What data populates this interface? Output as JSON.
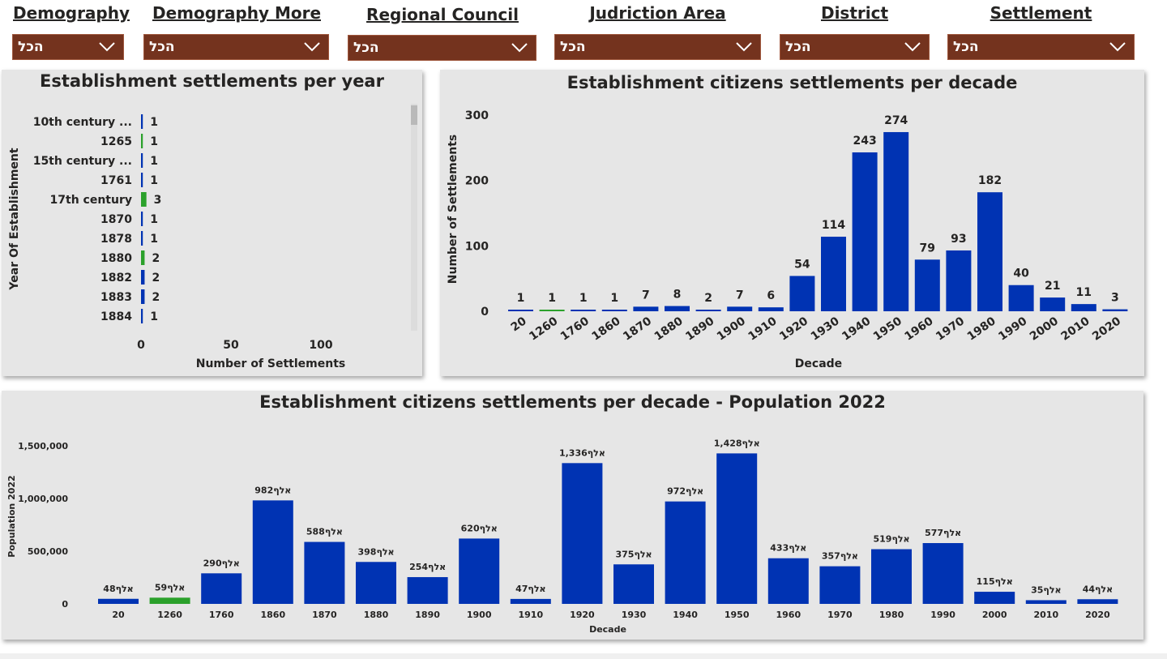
{
  "filters": [
    {
      "label": "Demography",
      "value": "הכל"
    },
    {
      "label": "Demography More",
      "value": "הכל"
    },
    {
      "label": "Regional Council",
      "value": "הכל"
    },
    {
      "label": "Judriction Area",
      "value": "הכל"
    },
    {
      "label": "District",
      "value": "הכל"
    },
    {
      "label": "Settlement",
      "value": "הכל"
    }
  ],
  "chart_data": [
    {
      "type": "bar",
      "orientation": "horizontal",
      "title": "Establishment settlements per year",
      "xlabel": "Number of Settlements",
      "ylabel": "Year Of Establishment",
      "xlim": [
        0,
        150
      ],
      "xticks": [
        "0",
        "50",
        "100"
      ],
      "categories": [
        "10th century ...",
        "1265",
        "15th century ...",
        "1761",
        "17th century",
        "1870",
        "1878",
        "1880",
        "1882",
        "1883",
        "1884"
      ],
      "values": [
        1,
        1,
        1,
        1,
        3,
        1,
        1,
        2,
        2,
        2,
        1
      ],
      "highlighted": [
        false,
        true,
        false,
        false,
        true,
        false,
        false,
        true,
        false,
        false,
        false
      ],
      "scrollable": true
    },
    {
      "type": "bar",
      "title": "Establishment citizens settlements per decade",
      "xlabel": "Decade",
      "ylabel": "Number of Settlements",
      "ylim": [
        0,
        300
      ],
      "yticks": [
        "0",
        "100",
        "200",
        "300"
      ],
      "categories": [
        "20",
        "1260",
        "1760",
        "1860",
        "1870",
        "1880",
        "1890",
        "1900",
        "1910",
        "1920",
        "1930",
        "1940",
        "1950",
        "1960",
        "1970",
        "1980",
        "1990",
        "2000",
        "2010",
        "2020"
      ],
      "values": [
        1,
        1,
        1,
        1,
        7,
        8,
        2,
        7,
        6,
        54,
        114,
        243,
        274,
        79,
        93,
        182,
        40,
        21,
        11,
        3
      ],
      "highlighted": [
        false,
        true,
        false,
        false,
        false,
        false,
        false,
        false,
        false,
        false,
        false,
        false,
        false,
        false,
        false,
        false,
        false,
        false,
        false,
        false
      ]
    },
    {
      "type": "bar",
      "title": "Establishment citizens settlements per decade - Population 2022",
      "xlabel": "Decade",
      "ylabel": "Population 2022",
      "ylim": [
        0,
        1500000
      ],
      "yticks": [
        "0",
        "500,000",
        "1,000,000",
        "1,500,000"
      ],
      "categories": [
        "20",
        "1260",
        "1760",
        "1860",
        "1870",
        "1880",
        "1890",
        "1900",
        "1910",
        "1920",
        "1930",
        "1940",
        "1950",
        "1960",
        "1970",
        "1980",
        "1990",
        "2000",
        "2010",
        "2020"
      ],
      "values": [
        48000,
        59000,
        290000,
        982000,
        588000,
        398000,
        254000,
        620000,
        47000,
        1336000,
        375000,
        972000,
        1428000,
        433000,
        357000,
        519000,
        577000,
        115000,
        35000,
        44000
      ],
      "data_labels": [
        "48אלף",
        "59אלף",
        "290אלף",
        "982אלף",
        "588אלף",
        "398אלף",
        "254אלף",
        "620אלף",
        "47אלף",
        "1,336אלף",
        "375אלף",
        "972אלף",
        "1,428אלף",
        "433אלף",
        "357אלף",
        "519אלף",
        "577אלף",
        "115אלף",
        "35אלף",
        "44אלף"
      ],
      "highlighted": [
        false,
        true,
        false,
        false,
        false,
        false,
        false,
        false,
        false,
        false,
        false,
        false,
        false,
        false,
        false,
        false,
        false,
        false,
        false,
        false
      ]
    }
  ],
  "colors": {
    "bar": "#0033b3",
    "highlight": "#2ba12b",
    "slicer_bg": "#74331e",
    "panel_bg": "#e6e6e6"
  },
  "icons": {
    "slicer_dropdown": "chevron-down-icon"
  }
}
